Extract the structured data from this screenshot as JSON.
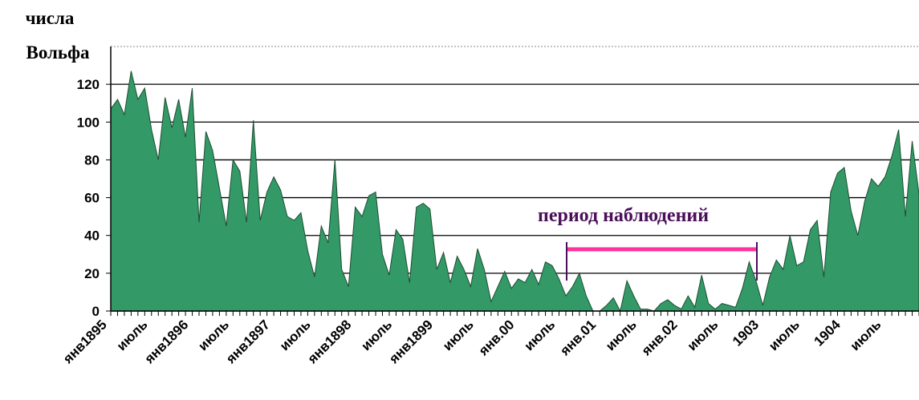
{
  "chart_data": {
    "type": "area",
    "ylabel": [
      "числа",
      "Вольфа"
    ],
    "annotation": "период наблюдений",
    "categories": [
      "янв1895",
      null,
      null,
      null,
      null,
      null,
      "июль",
      null,
      null,
      null,
      null,
      null,
      "янв1896",
      null,
      null,
      null,
      null,
      null,
      "июль",
      null,
      null,
      null,
      null,
      null,
      "янв1897",
      null,
      null,
      null,
      null,
      null,
      "июль",
      null,
      null,
      null,
      null,
      null,
      "янв1898",
      null,
      null,
      null,
      null,
      null,
      "июль",
      null,
      null,
      null,
      null,
      null,
      "янв1899",
      null,
      null,
      null,
      null,
      null,
      "июль",
      null,
      null,
      null,
      null,
      null,
      "янв.00",
      null,
      null,
      null,
      null,
      null,
      "июль",
      null,
      null,
      null,
      null,
      null,
      "янв.01",
      null,
      null,
      null,
      null,
      null,
      "июль",
      null,
      null,
      null,
      null,
      null,
      "янв.02",
      null,
      null,
      null,
      null,
      null,
      "июль",
      null,
      null,
      null,
      null,
      null,
      "1903",
      null,
      null,
      null,
      null,
      null,
      "июль",
      null,
      null,
      null,
      null,
      null,
      "1904",
      null,
      null,
      null,
      null,
      null,
      "июль",
      null,
      null,
      null,
      null,
      null
    ],
    "values": [
      107,
      112,
      104,
      127,
      112,
      118,
      96,
      80,
      113,
      97,
      112,
      92,
      118,
      47,
      95,
      85,
      65,
      45,
      80,
      74,
      47,
      101,
      48,
      63,
      71,
      64,
      50,
      48,
      52,
      32,
      18,
      45,
      36,
      80,
      22,
      13,
      55,
      50,
      61,
      63,
      30,
      19,
      43,
      38,
      15,
      55,
      57,
      54,
      22,
      31,
      15,
      29,
      22,
      13,
      33,
      22,
      5,
      13,
      21,
      12,
      17,
      15,
      22,
      14,
      26,
      24,
      17,
      8,
      13,
      20,
      8,
      0,
      0,
      3,
      7,
      0,
      16,
      8,
      1,
      1,
      0,
      4,
      6,
      3,
      1,
      8,
      2,
      19,
      4,
      1,
      4,
      3,
      2,
      12,
      26,
      16,
      3,
      18,
      27,
      22,
      40,
      24,
      26,
      43,
      48,
      18,
      63,
      73,
      76,
      53,
      40,
      58,
      70,
      66,
      71,
      82,
      96,
      50,
      90,
      62
    ],
    "color": "#339966",
    "ylim": [
      0,
      140
    ],
    "yticks": [
      0,
      20,
      40,
      60,
      80,
      100,
      120
    ],
    "grid": true
  }
}
